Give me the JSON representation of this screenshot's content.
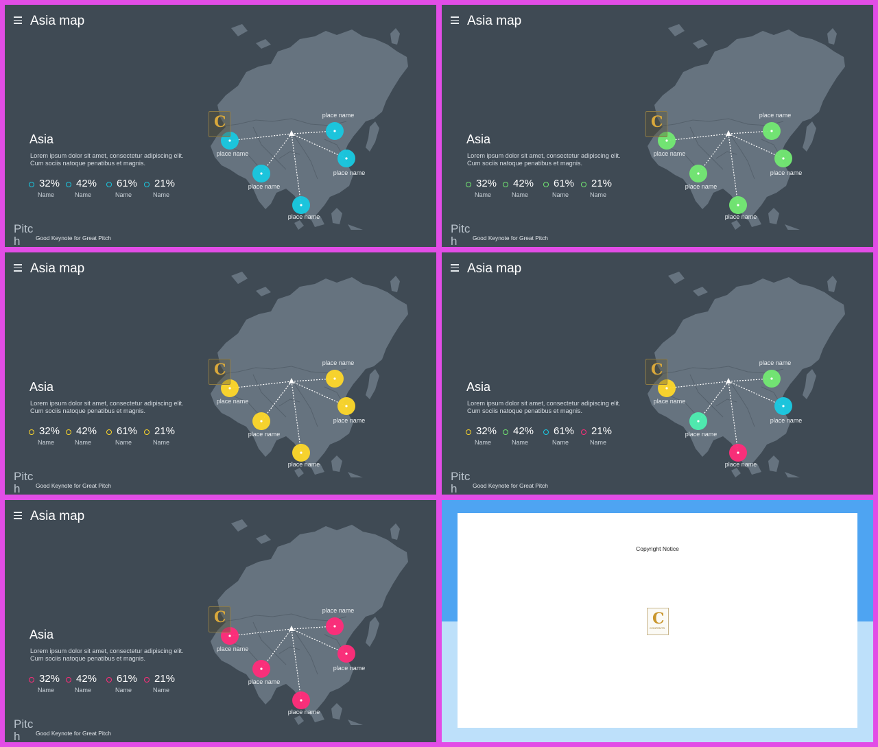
{
  "slide_common": {
    "title": "Asia map",
    "section_title": "Asia",
    "description": "Lorem ipsum dolor sit amet, consectetur adipiscing elit. Cum sociis natoque penatibus et magnis.",
    "place_label": "place name",
    "brand_word": "Pitch",
    "tagline": "Good Keynote for Great Pitch",
    "logo_letter": "C"
  },
  "stats": [
    {
      "value": "32%",
      "label": "Name"
    },
    {
      "value": "42%",
      "label": "Name"
    },
    {
      "value": "61%",
      "label": "Name"
    },
    {
      "value": "21%",
      "label": "Name"
    }
  ],
  "slides": [
    {
      "marker_colors": [
        "#19c8e0",
        "#19c8e0",
        "#19c8e0",
        "#19c8e0",
        "#19c8e0"
      ],
      "stat_colors": [
        "#19c8e0",
        "#19c8e0",
        "#19c8e0",
        "#19c8e0"
      ]
    },
    {
      "marker_colors": [
        "#72e872",
        "#72e872",
        "#72e872",
        "#72e872",
        "#72e872"
      ],
      "stat_colors": [
        "#72e872",
        "#72e872",
        "#72e872",
        "#72e872"
      ]
    },
    {
      "marker_colors": [
        "#fcd62b",
        "#fcd62b",
        "#fcd62b",
        "#fcd62b",
        "#fcd62b"
      ],
      "stat_colors": [
        "#fcd62b",
        "#fcd62b",
        "#fcd62b",
        "#fcd62b"
      ]
    },
    {
      "marker_colors": [
        "#fcd62b",
        "#72e872",
        "#1bc9e2",
        "#4eedb0",
        "#ff2d7a"
      ],
      "stat_colors": [
        "#fcd62b",
        "#72e872",
        "#1bc9e2",
        "#ff2d7a"
      ]
    },
    {
      "marker_colors": [
        "#ff2d7a",
        "#ff2d7a",
        "#ff2d7a",
        "#ff2d7a",
        "#ff2d7a"
      ],
      "stat_colors": [
        "#ff2d7a",
        "#ff2d7a",
        "#ff2d7a",
        "#ff2d7a"
      ]
    }
  ],
  "copyright": {
    "notice": "Copyright Notice",
    "logo_letter": "C",
    "logo_text": "CONTENTS"
  },
  "colors": {
    "frame": "#e24de6",
    "slide_bg": "#3f4a54",
    "map_fill": "#66737f"
  }
}
